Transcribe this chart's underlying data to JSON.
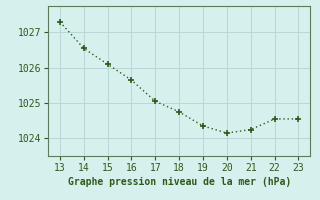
{
  "x": [
    13,
    14,
    15,
    16,
    17,
    18,
    19,
    20,
    21,
    22,
    23
  ],
  "y": [
    1027.3,
    1026.55,
    1026.1,
    1025.65,
    1025.05,
    1024.75,
    1024.35,
    1024.15,
    1024.25,
    1024.55,
    1024.55
  ],
  "line_color": "#2d5a1b",
  "marker": "+",
  "marker_size": 5,
  "marker_linewidth": 1.2,
  "line_width": 1.0,
  "xlabel": "Graphe pression niveau de la mer (hPa)",
  "xlabel_color": "#2d5a1b",
  "xlabel_fontsize": 7,
  "tick_color": "#2d5a1b",
  "tick_fontsize": 7,
  "xlim": [
    12.5,
    23.5
  ],
  "ylim": [
    1023.5,
    1027.75
  ],
  "yticks": [
    1024,
    1025,
    1026,
    1027
  ],
  "xticks": [
    13,
    14,
    15,
    16,
    17,
    18,
    19,
    20,
    21,
    22,
    23
  ],
  "background_color": "#d6f0ee",
  "grid_color": "#b8d8d8",
  "spine_color": "#5a7a5a",
  "bottom_spine_color": "#2d5a1b",
  "left_spine_color": "#5a7a5a"
}
